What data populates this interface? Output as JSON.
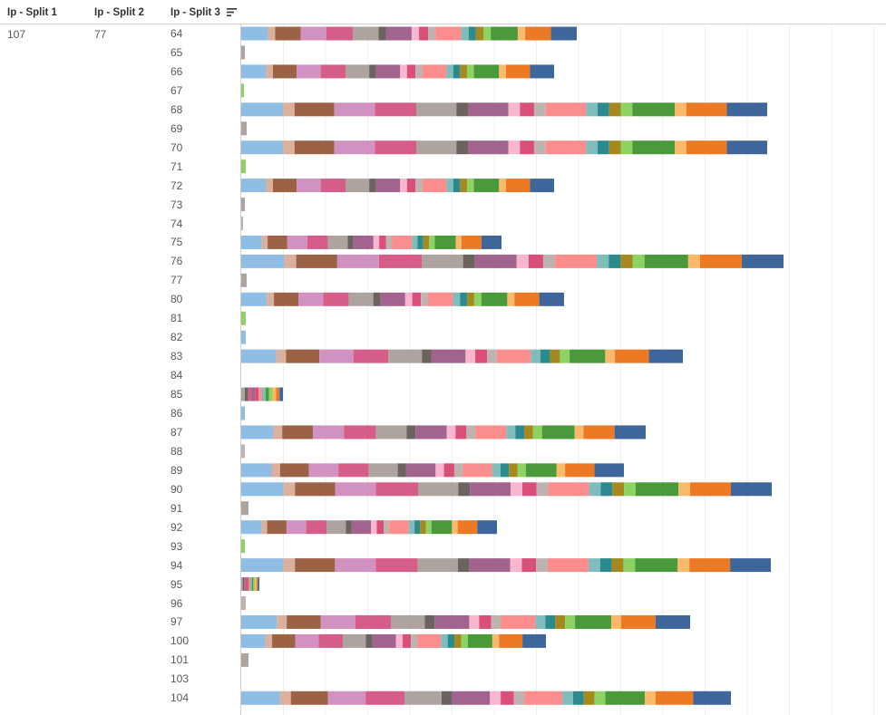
{
  "headers": {
    "split1": "Ip - Split 1",
    "split2": "Ip - Split 2",
    "split3": "Ip - Split 3"
  },
  "sort_icon": "sort-descending-icon",
  "group": {
    "split1": "107",
    "split2": "77"
  },
  "chart_data": {
    "type": "bar",
    "orientation": "horizontal",
    "stacked": true,
    "grid": "vertical-gridlines",
    "segment_colors": [
      "#8fbde3",
      "#dbb09c",
      "#9b6246",
      "#d192c1",
      "#d65d8a",
      "#aea49f",
      "#6b6360",
      "#a2648f",
      "#f8b6cf",
      "#d94f79",
      "#bfb3b0",
      "#fc8d8d",
      "#7fbcbb",
      "#2a8a8d",
      "#a6891e",
      "#8dd262",
      "#4a9a3c",
      "#fbb96c",
      "#ec7a25",
      "#3f669b"
    ],
    "segment_weights": [
      6.5,
      1.8,
      6.2,
      6.3,
      6.5,
      6.2,
      1.8,
      6.3,
      1.8,
      2.2,
      1.8,
      6.3,
      1.8,
      1.8,
      1.8,
      1.8,
      6.6,
      1.8,
      6.3,
      6.3
    ],
    "micro_colors": [
      "#aea49f",
      "#6b6360",
      "#d65d8a",
      "#a2648f",
      "#d94f79",
      "#fc8d8d",
      "#7fbcbb",
      "#4a9a3c",
      "#8dd262",
      "#fbb96c",
      "#ec7a25",
      "#3f669b"
    ],
    "categories": [
      "64",
      "65",
      "66",
      "67",
      "68",
      "69",
      "70",
      "71",
      "72",
      "73",
      "74",
      "75",
      "76",
      "77",
      "80",
      "81",
      "82",
      "83",
      "84",
      "85",
      "86",
      "87",
      "88",
      "89",
      "90",
      "91",
      "92",
      "93",
      "94",
      "95",
      "96",
      "97",
      "100",
      "101",
      "103",
      "104"
    ],
    "values": [
      370,
      4,
      345,
      3,
      580,
      6,
      580,
      5,
      345,
      4,
      2,
      287,
      598,
      6,
      356,
      5,
      5,
      487,
      0,
      46,
      4,
      446,
      4,
      422,
      585,
      8,
      282,
      4,
      584,
      20,
      5,
      495,
      336,
      8,
      0,
      540
    ],
    "xlim": [
      0,
      711
    ]
  }
}
